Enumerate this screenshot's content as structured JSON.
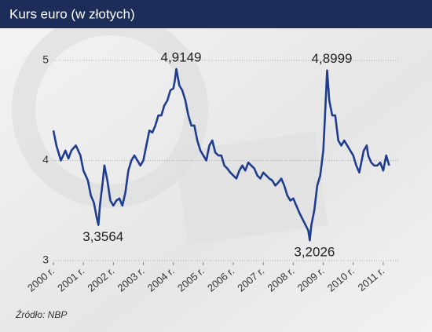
{
  "chart_data": {
    "type": "line",
    "title": "Kurs euro (w złotych)",
    "source": "Źródło: NBP",
    "x": [
      2000.0,
      2000.1,
      2000.25,
      2000.4,
      2000.5,
      2000.6,
      2000.75,
      2000.9,
      2001.0,
      2001.15,
      2001.25,
      2001.35,
      2001.45,
      2001.5,
      2001.55,
      2001.65,
      2001.7,
      2001.8,
      2001.9,
      2002.0,
      2002.1,
      2002.2,
      2002.3,
      2002.4,
      2002.5,
      2002.6,
      2002.7,
      2002.8,
      2002.9,
      2003.0,
      2003.1,
      2003.2,
      2003.3,
      2003.4,
      2003.5,
      2003.6,
      2003.7,
      2003.8,
      2003.9,
      2004.0,
      2004.05,
      2004.1,
      2004.2,
      2004.3,
      2004.4,
      2004.5,
      2004.6,
      2004.7,
      2004.8,
      2004.9,
      2005.0,
      2005.1,
      2005.2,
      2005.3,
      2005.4,
      2005.5,
      2005.6,
      2005.7,
      2005.8,
      2005.9,
      2006.0,
      2006.1,
      2006.2,
      2006.3,
      2006.4,
      2006.5,
      2006.6,
      2006.7,
      2006.8,
      2006.9,
      2007.0,
      2007.1,
      2007.2,
      2007.3,
      2007.4,
      2007.5,
      2007.6,
      2007.7,
      2007.8,
      2007.9,
      2008.0,
      2008.1,
      2008.2,
      2008.3,
      2008.4,
      2008.5,
      2008.55,
      2008.6,
      2008.7,
      2008.8,
      2008.9,
      2009.0,
      2009.05,
      2009.13,
      2009.2,
      2009.3,
      2009.4,
      2009.5,
      2009.6,
      2009.7,
      2009.8,
      2009.9,
      2010.0,
      2010.1,
      2010.2,
      2010.35,
      2010.45,
      2010.5,
      2010.6,
      2010.7,
      2010.8,
      2010.9,
      2011.0,
      2011.1,
      2011.2
    ],
    "series": [
      {
        "color": "#1f3d8f",
        "values": [
          4.3,
          4.15,
          4.0,
          4.1,
          4.02,
          4.1,
          4.15,
          4.05,
          3.9,
          3.8,
          3.65,
          3.58,
          3.42,
          3.3564,
          3.55,
          3.8,
          3.95,
          3.8,
          3.6,
          3.55,
          3.6,
          3.62,
          3.55,
          3.68,
          3.9,
          4.0,
          4.05,
          4.0,
          3.95,
          4.0,
          4.15,
          4.3,
          4.28,
          4.35,
          4.45,
          4.45,
          4.55,
          4.6,
          4.7,
          4.72,
          4.8,
          4.9149,
          4.75,
          4.7,
          4.6,
          4.45,
          4.35,
          4.35,
          4.2,
          4.1,
          4.05,
          4.0,
          4.15,
          4.2,
          4.08,
          4.05,
          4.05,
          3.95,
          3.92,
          3.88,
          3.85,
          3.82,
          3.9,
          3.95,
          3.9,
          3.98,
          3.95,
          3.92,
          3.85,
          3.82,
          3.88,
          3.85,
          3.82,
          3.8,
          3.75,
          3.78,
          3.82,
          3.75,
          3.65,
          3.6,
          3.62,
          3.55,
          3.48,
          3.42,
          3.36,
          3.3,
          3.2026,
          3.35,
          3.5,
          3.75,
          3.85,
          4.1,
          4.4,
          4.8999,
          4.6,
          4.45,
          4.45,
          4.2,
          4.15,
          4.2,
          4.15,
          4.1,
          4.05,
          3.95,
          3.88,
          4.1,
          4.15,
          4.05,
          3.98,
          3.95,
          3.95,
          3.98,
          3.9,
          4.05,
          3.95
        ]
      }
    ],
    "annotations": [
      {
        "x": 2001.5,
        "value": 3.3564,
        "label": "3,3564"
      },
      {
        "x": 2004.1,
        "value": 4.9149,
        "label": "4,9149"
      },
      {
        "x": 2008.55,
        "value": 3.2026,
        "label": "3,2026"
      },
      {
        "x": 2009.13,
        "value": 4.8999,
        "label": "4,8999"
      }
    ],
    "xlim": [
      2000,
      2011.5
    ],
    "xticks": [
      {
        "value": 2000,
        "label": "2000 r."
      },
      {
        "value": 2001,
        "label": "2001 r."
      },
      {
        "value": 2002,
        "label": "2002 r."
      },
      {
        "value": 2003,
        "label": "2003 r."
      },
      {
        "value": 2004,
        "label": "2004 r."
      },
      {
        "value": 2005,
        "label": "2005 r."
      },
      {
        "value": 2006,
        "label": "2006 r."
      },
      {
        "value": 2007,
        "label": "2007 r."
      },
      {
        "value": 2008,
        "label": "2008 r."
      },
      {
        "value": 2009,
        "label": "2009 r."
      },
      {
        "value": 2010,
        "label": "2010 r."
      },
      {
        "value": 2011,
        "label": "2011 r."
      }
    ],
    "ylim": [
      3,
      5
    ],
    "yticks": [
      3,
      4,
      5
    ],
    "grid": true
  }
}
